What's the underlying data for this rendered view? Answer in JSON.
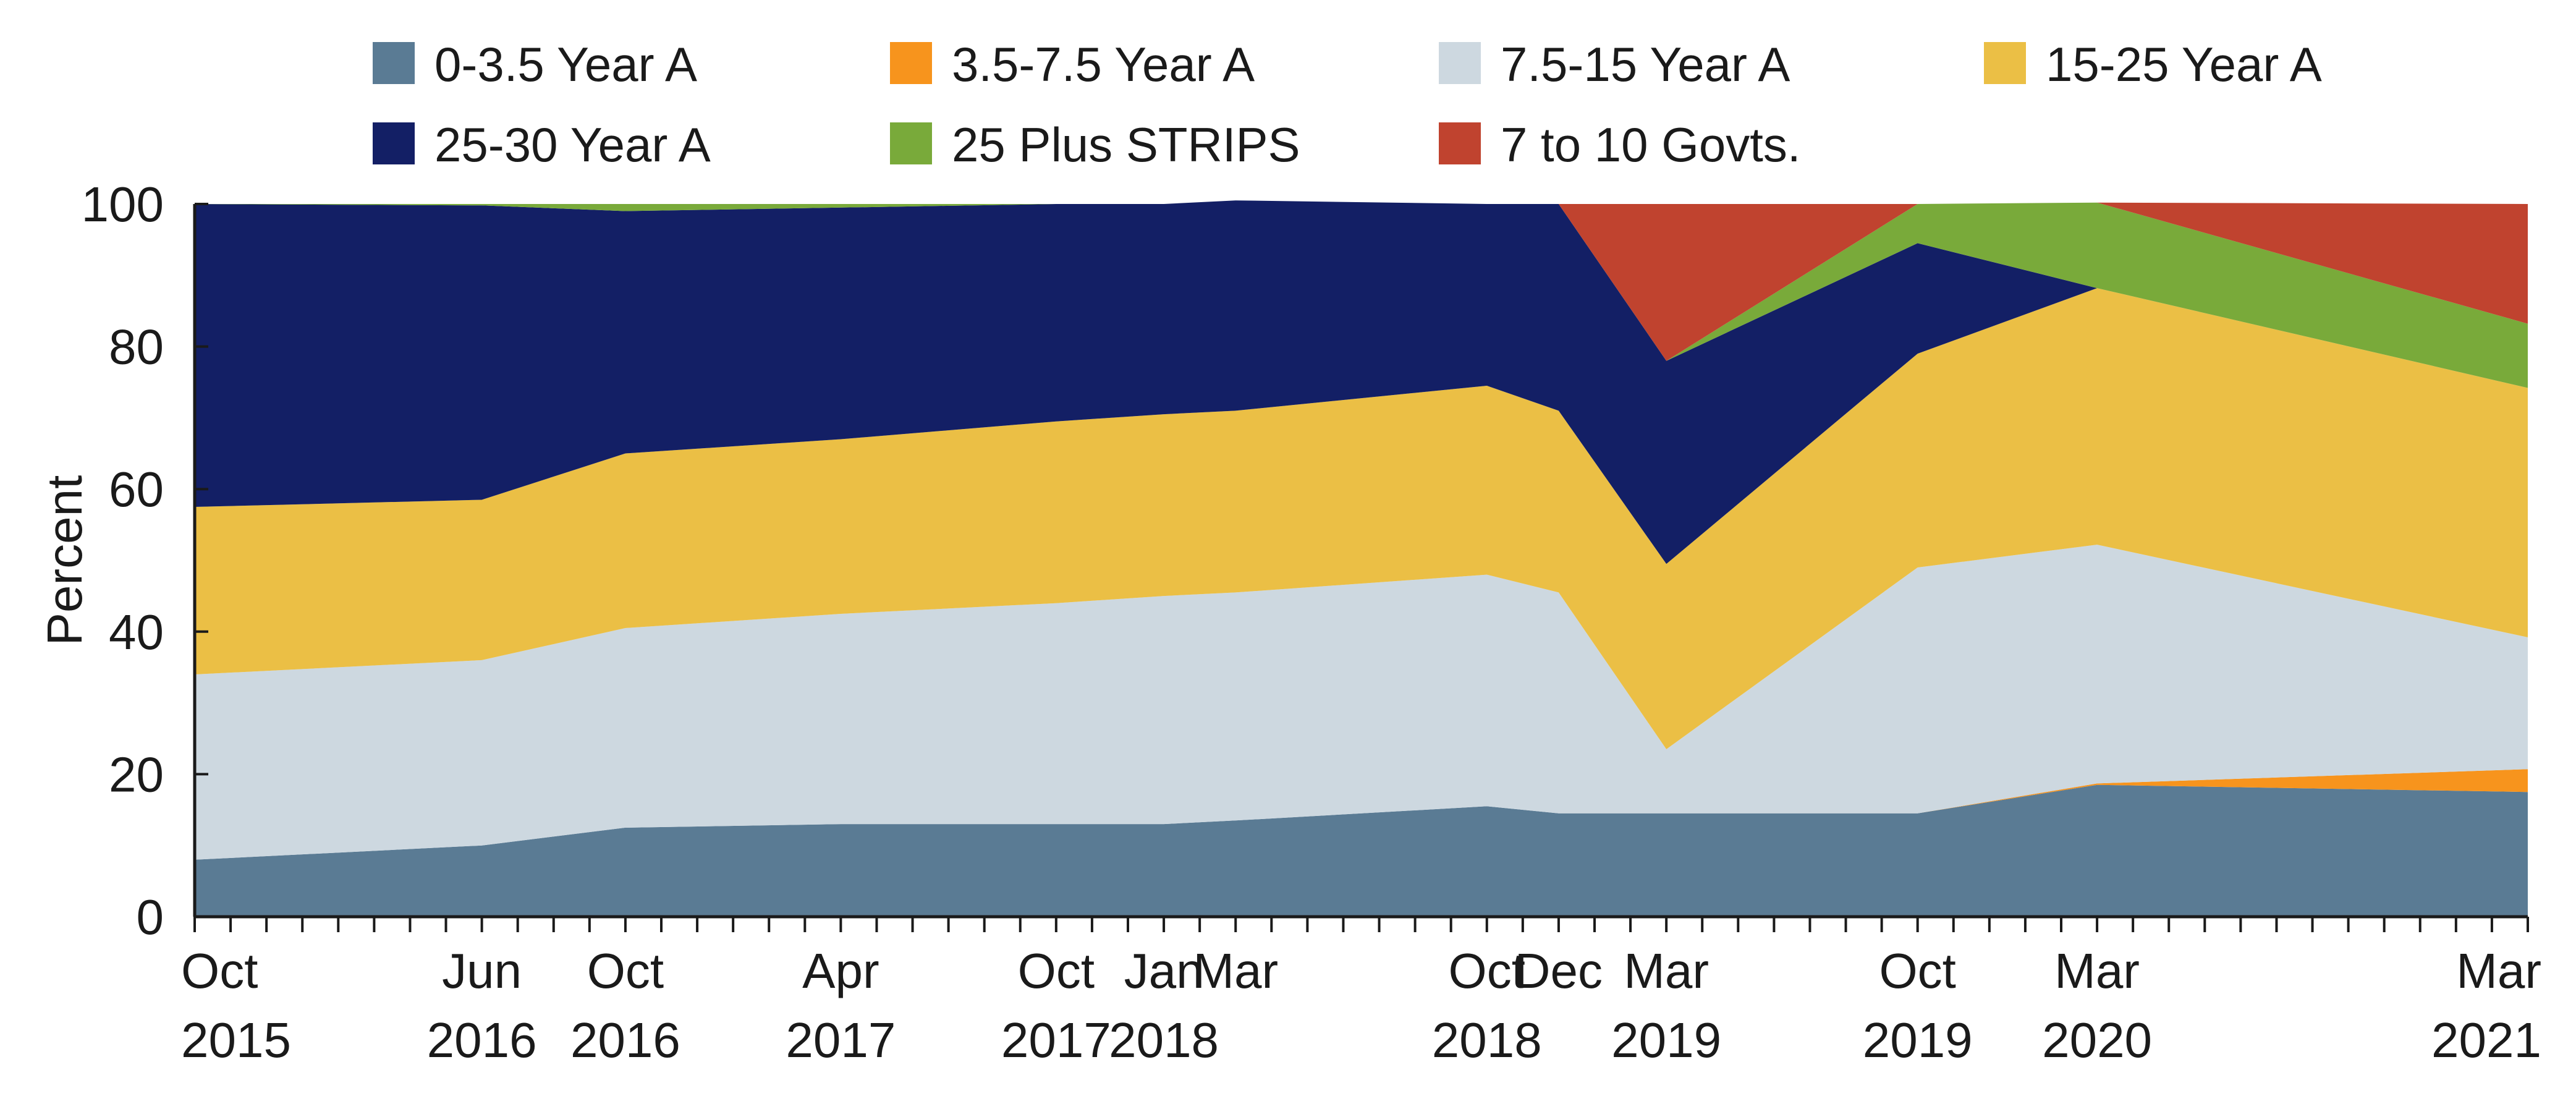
{
  "chart_data": {
    "type": "area",
    "stacked": true,
    "ylabel": "Percent",
    "ylim": [
      0,
      100
    ],
    "yticks": [
      0,
      20,
      40,
      60,
      80,
      100
    ],
    "grid": false,
    "legend_position": "top",
    "x": [
      {
        "m": "Oct",
        "y": "2015"
      },
      {
        "m": "Jun",
        "y": "2016"
      },
      {
        "m": "Oct",
        "y": "2016"
      },
      {
        "m": "Apr",
        "y": "2017"
      },
      {
        "m": "Oct",
        "y": "2017"
      },
      {
        "m": "Jan",
        "y": "2018"
      },
      {
        "m": "Mar",
        "y": "2018"
      },
      {
        "m": "Oct",
        "y": "2018"
      },
      {
        "m": "Dec",
        "y": "2018"
      },
      {
        "m": "Mar",
        "y": "2019"
      },
      {
        "m": "Oct",
        "y": "2019"
      },
      {
        "m": "Mar",
        "y": "2020"
      },
      {
        "m": "Mar",
        "y": "2021"
      }
    ],
    "x_month_index": [
      0,
      8,
      12,
      18,
      24,
      27,
      29,
      36,
      38,
      41,
      48,
      53,
      65
    ],
    "x_year_label_index": [
      0,
      1,
      2,
      3,
      4,
      5,
      7,
      9,
      10,
      11,
      12
    ],
    "series": [
      {
        "name": "0-3.5 Year A",
        "color": "#5a7b94",
        "values": [
          8,
          10,
          12.5,
          13,
          13,
          13,
          13.5,
          15.5,
          14.5,
          14.5,
          14.5,
          18.5,
          17.5
        ]
      },
      {
        "name": "3.5-7.5 Year A",
        "color": "#f7941d",
        "values": [
          0,
          0,
          0,
          0,
          0,
          0,
          0,
          0,
          0,
          0,
          0,
          0.2,
          3.2
        ]
      },
      {
        "name": "7.5-15 Year A",
        "color": "#cdd8e0",
        "values": [
          26,
          26,
          28,
          29.5,
          31,
          32,
          32,
          32.5,
          31,
          9,
          34.5,
          33.5,
          18.5
        ]
      },
      {
        "name": "15-25 Year A",
        "color": "#ebbf45",
        "values": [
          23.5,
          22.5,
          24.5,
          24.5,
          25.5,
          25.5,
          25.5,
          26.5,
          25.5,
          26,
          30,
          36,
          35
        ]
      },
      {
        "name": "25-30 Year A",
        "color": "#131f65",
        "values": [
          42.5,
          41.3,
          34,
          32.5,
          30.5,
          29.5,
          29.5,
          25.5,
          29,
          28.5,
          15.5,
          0,
          0
        ]
      },
      {
        "name": "25 Plus STRIPS",
        "color": "#79aa3a",
        "values": [
          0,
          0.2,
          1,
          0.5,
          0,
          0,
          0,
          0,
          0,
          0,
          5.5,
          12,
          9
        ]
      },
      {
        "name": "7 to 10 Govts.",
        "color": "#c0432f",
        "values": [
          0,
          0,
          0,
          0,
          0,
          0,
          0,
          0,
          0,
          22,
          0,
          0,
          16.8
        ]
      }
    ]
  }
}
